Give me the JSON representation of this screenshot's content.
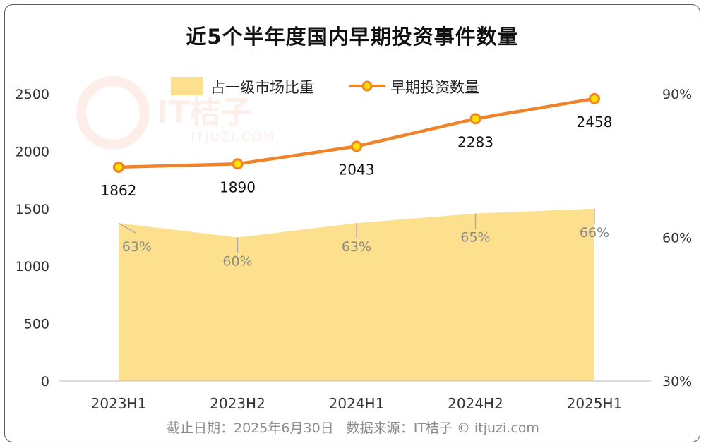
{
  "title": "近5个半年度国内早期投资事件数量",
  "footer": {
    "date_text": "截止日期：2025年6月30日",
    "source_text": "数据来源：IT桔子 © itjuzi.com"
  },
  "watermark": {
    "brand": "IT桔子",
    "domain": "ITJUZI.COM"
  },
  "colors": {
    "line": "#f0822a",
    "marker_fill": "#ffe000",
    "area": "#fde08e",
    "axis_text": "#333333",
    "area_label": "#8a8a8a"
  },
  "chart_data": {
    "type": "line",
    "categories": [
      "2023H1",
      "2023H2",
      "2024H1",
      "2024H2",
      "2025H1"
    ],
    "series": [
      {
        "name": "占一级市场比重",
        "kind": "area",
        "axis": "right",
        "values": [
          63,
          60,
          63,
          65,
          66
        ],
        "labels": [
          "63%",
          "60%",
          "63%",
          "65%",
          "66%"
        ]
      },
      {
        "name": "早期投资数量",
        "kind": "line",
        "axis": "left",
        "values": [
          1862,
          1890,
          2043,
          2283,
          2458
        ],
        "labels": [
          "1862",
          "1890",
          "2043",
          "2283",
          "2458"
        ]
      }
    ],
    "y_left": {
      "min": 0,
      "max": 2500,
      "ticks": [
        "0",
        "500",
        "1000",
        "1500",
        "2000",
        "2500"
      ]
    },
    "y_right": {
      "min": 30,
      "max": 90,
      "ticks": [
        "30%",
        "60%",
        "90%"
      ]
    },
    "legend_position": "top",
    "grid": false
  }
}
